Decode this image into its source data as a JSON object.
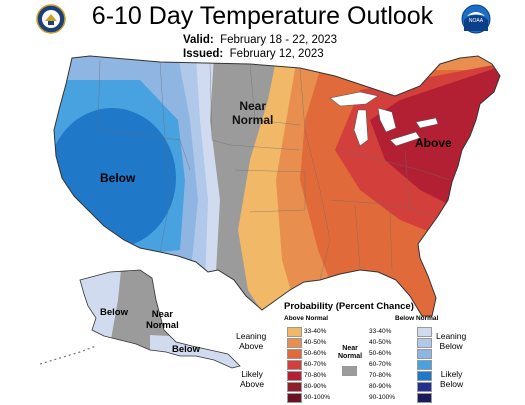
{
  "header": {
    "title": "6-10 Day Temperature Outlook",
    "valid_label": "Valid:",
    "valid_dates": "February 18 - 22, 2023",
    "issued_label": "Issued:",
    "issued_date": "February 12, 2023"
  },
  "logos": {
    "left": "commerce-seal-icon",
    "right": "noaa-logo-icon",
    "noaa_text": "NOAA"
  },
  "map_labels": {
    "west": "Below",
    "central_line1": "Near",
    "central_line2": "Normal",
    "east": "Above",
    "alaska_west": "Below",
    "alaska_central_line1": "Near",
    "alaska_central_line2": "Normal",
    "alaska_south": "Below"
  },
  "legend": {
    "title": "Probability (Percent Chance)",
    "above_head": "Above Normal",
    "below_head": "Below Normal",
    "near_normal_line1": "Near",
    "near_normal_line2": "Normal",
    "leaning_above_1": "Leaning",
    "leaning_above_2": "Above",
    "likely_above_1": "Likely",
    "likely_above_2": "Above",
    "leaning_below_1": "Leaning",
    "leaning_below_2": "Below",
    "likely_below_1": "Likely",
    "likely_below_2": "Below",
    "above": [
      {
        "range": "33-40%",
        "color": "#f1b967"
      },
      {
        "range": "40-50%",
        "color": "#e88f4f"
      },
      {
        "range": "50-60%",
        "color": "#e06a3a"
      },
      {
        "range": "60-70%",
        "color": "#d3403b"
      },
      {
        "range": "70-80%",
        "color": "#b32033"
      },
      {
        "range": "80-90%",
        "color": "#8f1d2a"
      },
      {
        "range": "90-100%",
        "color": "#6b1220"
      }
    ],
    "below": [
      {
        "range": "33-40%",
        "color": "#d1dbf0"
      },
      {
        "range": "40-50%",
        "color": "#b0c9ea"
      },
      {
        "range": "50-60%",
        "color": "#8fb5e3"
      },
      {
        "range": "60-70%",
        "color": "#49a2e0"
      },
      {
        "range": "70-80%",
        "color": "#1f78c8"
      },
      {
        "range": "80-90%",
        "color": "#23308f"
      },
      {
        "range": "90-100%",
        "color": "#1a1a5c"
      }
    ],
    "near_normal_color": "#9b9b9b"
  }
}
